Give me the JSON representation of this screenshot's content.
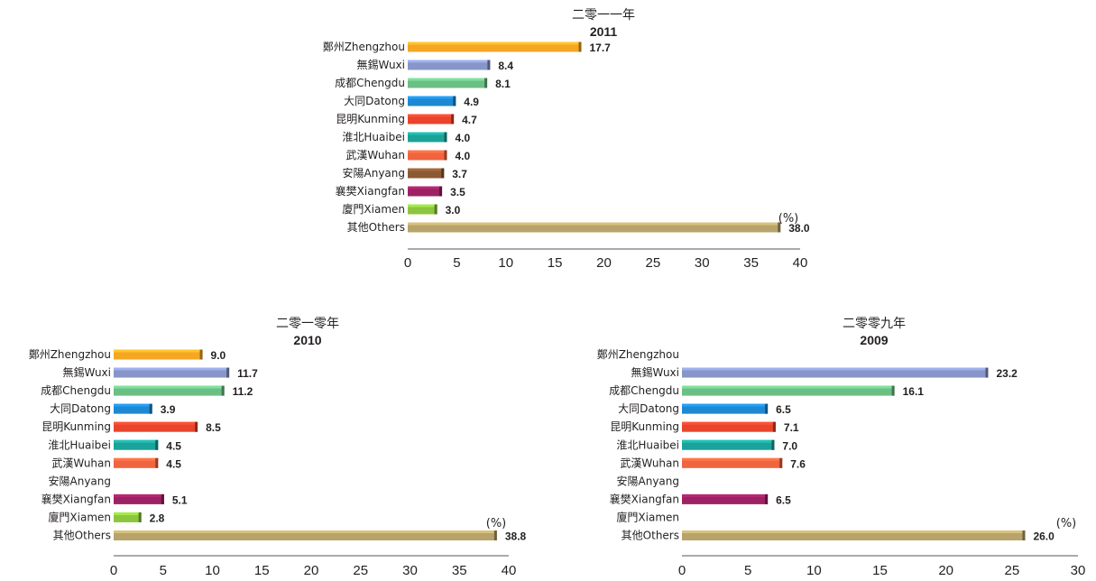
{
  "chart_data": [
    {
      "type": "bar",
      "orientation": "horizontal",
      "title": "二零一一年",
      "subtitle": "2011",
      "unit": "(%)",
      "categories": [
        "鄭州Zhengzhou",
        "無錫Wuxi",
        "成都Chengdu",
        "大同Datong",
        "昆明Kunming",
        "淮北Huaibei",
        "武漢Wuhan",
        "安陽Anyang",
        "襄樊Xiangfan",
        "廈門Xiamen",
        "其他Others"
      ],
      "values": [
        17.7,
        8.4,
        8.1,
        4.9,
        4.7,
        4.0,
        4.0,
        3.7,
        3.5,
        3.0,
        38.0
      ],
      "value_labels": [
        "17.7",
        "8.4",
        "8.1",
        "4.9",
        "4.7",
        "4.0",
        "4.0",
        "3.7",
        "3.5",
        "3.0",
        "38.0"
      ],
      "xlim": [
        0,
        40
      ],
      "ticks": [
        "0",
        "5",
        "10",
        "15",
        "20",
        "25",
        "30",
        "35",
        "40"
      ],
      "grid": false
    },
    {
      "type": "bar",
      "orientation": "horizontal",
      "title": "二零一零年",
      "subtitle": "2010",
      "unit": "(%)",
      "categories": [
        "鄭州Zhengzhou",
        "無錫Wuxi",
        "成都Chengdu",
        "大同Datong",
        "昆明Kunming",
        "淮北Huaibei",
        "武漢Wuhan",
        "安陽Anyang",
        "襄樊Xiangfan",
        "廈門Xiamen",
        "其他Others"
      ],
      "values": [
        9.0,
        11.7,
        11.2,
        3.9,
        8.5,
        4.5,
        4.5,
        null,
        5.1,
        2.8,
        38.8
      ],
      "value_labels": [
        "9.0",
        "11.7",
        "11.2",
        "3.9",
        "8.5",
        "4.5",
        "4.5",
        "",
        "5.1",
        "2.8",
        "38.8"
      ],
      "xlim": [
        0,
        40
      ],
      "ticks": [
        "0",
        "5",
        "10",
        "15",
        "20",
        "25",
        "30",
        "35",
        "40"
      ],
      "grid": false
    },
    {
      "type": "bar",
      "orientation": "horizontal",
      "title": "二零零九年",
      "subtitle": "2009",
      "unit": "(%)",
      "categories": [
        "鄭州Zhengzhou",
        "無錫Wuxi",
        "成都Chengdu",
        "大同Datong",
        "昆明Kunming",
        "淮北Huaibei",
        "武漢Wuhan",
        "安陽Anyang",
        "襄樊Xiangfan",
        "廈門Xiamen",
        "其他Others"
      ],
      "values": [
        null,
        23.2,
        16.1,
        6.5,
        7.1,
        7.0,
        7.6,
        null,
        6.5,
        null,
        26.0
      ],
      "value_labels": [
        "",
        "23.2",
        "16.1",
        "6.5",
        "7.1",
        "7.0",
        "7.6",
        "",
        "6.5",
        "",
        "26.0"
      ],
      "xlim": [
        0,
        30
      ],
      "ticks": [
        "0",
        "5",
        "10",
        "15",
        "20",
        "25",
        "30"
      ],
      "grid": false
    }
  ],
  "colors": [
    "#f5a623",
    "#8795c9",
    "#6cbf84",
    "#1e88d2",
    "#e8452c",
    "#1aa39a",
    "#f0643f",
    "#8b5a32",
    "#9c2263",
    "#8cc63f",
    "#b8a46a"
  ]
}
